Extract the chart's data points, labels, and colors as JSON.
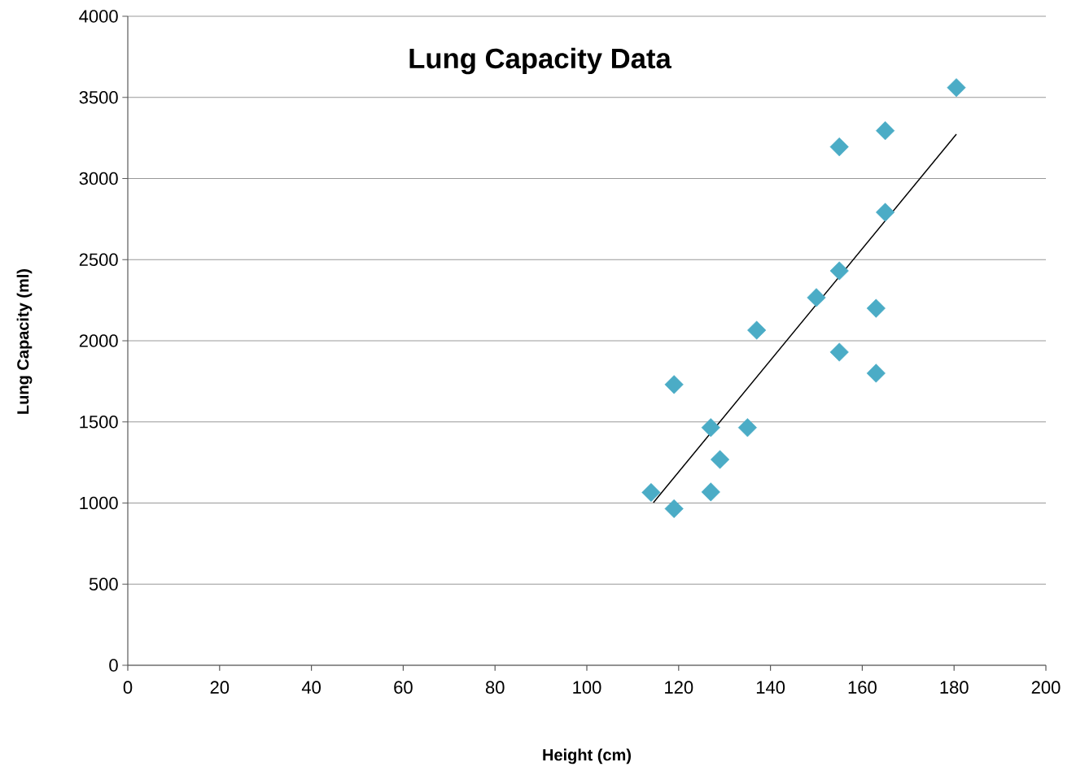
{
  "chart_data": {
    "type": "scatter",
    "title": "Lung Capacity Data",
    "xlabel": "Height (cm)",
    "ylabel": "Lung Capacity  (ml)",
    "xlim": [
      0,
      200
    ],
    "ylim": [
      0,
      4000
    ],
    "xticks": [
      0,
      20,
      40,
      60,
      80,
      100,
      120,
      140,
      160,
      180,
      200
    ],
    "yticks": [
      0,
      500,
      1000,
      1500,
      2000,
      2500,
      3000,
      3500,
      4000
    ],
    "grid": "y",
    "marker": "diamond",
    "series": [
      {
        "color": "#4bacc6",
        "x": [
          114,
          119,
          119,
          127,
          127,
          129,
          135,
          137,
          150,
          155,
          155,
          155,
          163,
          163,
          165,
          165,
          180.5
        ],
        "values": [
          1065,
          965,
          1730,
          1465,
          1068,
          1268,
          1465,
          2065,
          2266,
          2431,
          3195,
          1930,
          2200,
          1800,
          2792,
          3295,
          3560
        ]
      },
      {
        "type": "line",
        "color": "#000000",
        "marker": "none",
        "line_style": "solid",
        "x": [
          114.5,
          180.5
        ],
        "values": [
          1002,
          3273
        ]
      }
    ]
  }
}
